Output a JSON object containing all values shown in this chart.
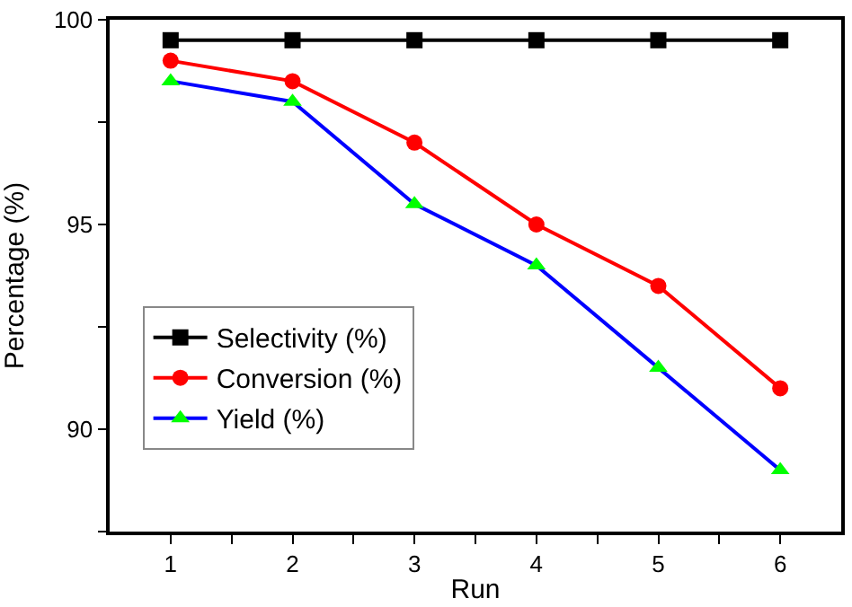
{
  "chart_data": {
    "type": "line",
    "xlabel": "Run",
    "ylabel": "Percentage (%)",
    "x": [
      1,
      2,
      3,
      4,
      5,
      6
    ],
    "series": [
      {
        "name": "Selectivity (%)",
        "color": "#000000",
        "marker": "square",
        "values": [
          99.5,
          99.5,
          99.5,
          99.5,
          99.5,
          99.5
        ]
      },
      {
        "name": "Conversion (%)",
        "color": "#ff0000",
        "marker": "circle",
        "values": [
          99,
          98.5,
          97,
          95,
          93.5,
          91
        ]
      },
      {
        "name": "Yield (%)",
        "color": "#0000ff",
        "marker": "triangle",
        "values": [
          98.5,
          98,
          95.5,
          94,
          91.5,
          89
        ]
      }
    ],
    "xlim": [
      0.5,
      6.5
    ],
    "xticks": [
      1,
      {
        "value": 1.5,
        "label": null
      },
      2,
      {
        "value": 2.5,
        "label": null
      },
      3,
      {
        "value": 3.5,
        "label": null
      },
      4,
      {
        "value": 4.5,
        "label": null
      },
      5,
      {
        "value": 5.5,
        "label": null
      },
      6
    ],
    "ylim": [
      87.5,
      100
    ],
    "yticks": [
      {
        "value": 87.5,
        "label": null
      },
      90,
      {
        "value": 92.5,
        "label": null
      },
      95,
      {
        "value": 97.5,
        "label": null
      },
      100
    ],
    "legend": "left",
    "line_style": "solid"
  }
}
